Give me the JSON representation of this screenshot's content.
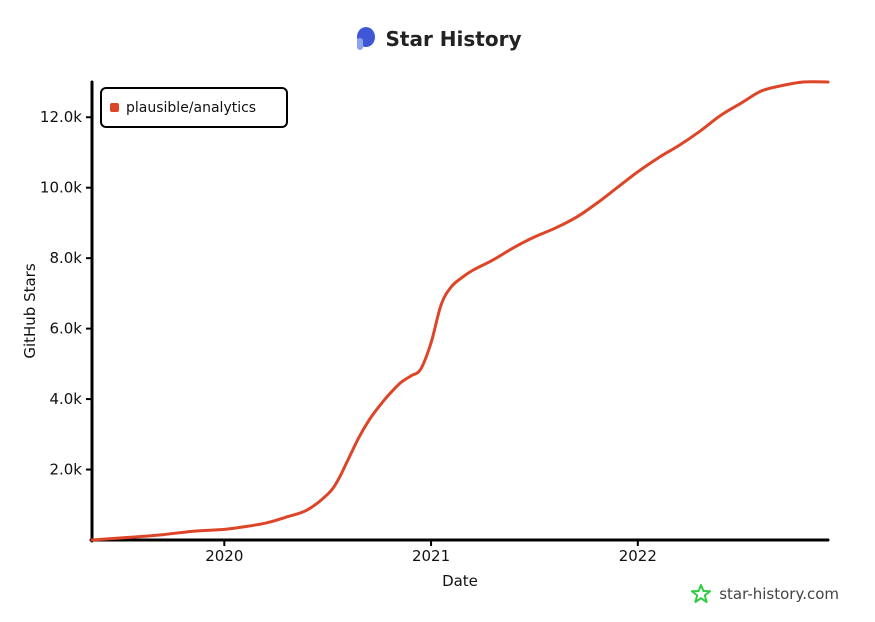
{
  "header": {
    "title": "Star History",
    "logo_icon": "star-history-logo-icon"
  },
  "footer": {
    "site": "star-history.com",
    "icon": "star-icon"
  },
  "colors": {
    "series": "#dd4528",
    "axis": "#000000",
    "logo": "#3f57d6",
    "footer_star": "#2ecc40"
  },
  "chart_data": {
    "type": "line",
    "title": "Star History",
    "xlabel": "Date",
    "ylabel": "GitHub Stars",
    "ylim": [
      0,
      13000
    ],
    "y_ticks": [
      2000,
      4000,
      6000,
      8000,
      10000,
      12000
    ],
    "y_tick_labels": [
      "2.0k",
      "4.0k",
      "6.0k",
      "8.0k",
      "10.0k",
      "12.0k"
    ],
    "x_ticks": [
      2020,
      2021,
      2022
    ],
    "x_tick_labels": [
      "2020",
      "2021",
      "2022"
    ],
    "xlim": [
      2019.36,
      2022.92
    ],
    "grid": false,
    "legend": {
      "placement": "top-left",
      "entries": [
        "plausible/analytics"
      ]
    },
    "series": [
      {
        "name": "plausible/analytics",
        "x": [
          2019.36,
          2019.55,
          2019.7,
          2019.85,
          2020.0,
          2020.1,
          2020.2,
          2020.3,
          2020.4,
          2020.5,
          2020.55,
          2020.6,
          2020.65,
          2020.7,
          2020.75,
          2020.8,
          2020.85,
          2020.9,
          2020.95,
          2021.0,
          2021.05,
          2021.1,
          2021.15,
          2021.2,
          2021.3,
          2021.4,
          2021.5,
          2021.6,
          2021.7,
          2021.8,
          2021.9,
          2022.0,
          2022.1,
          2022.2,
          2022.3,
          2022.4,
          2022.5,
          2022.6,
          2022.7,
          2022.8,
          2022.92
        ],
        "y": [
          0,
          80,
          150,
          250,
          300,
          380,
          480,
          650,
          850,
          1300,
          1700,
          2300,
          2900,
          3400,
          3800,
          4150,
          4450,
          4650,
          4850,
          5600,
          6700,
          7200,
          7450,
          7650,
          7950,
          8300,
          8600,
          8850,
          9150,
          9550,
          10000,
          10450,
          10850,
          11200,
          11600,
          12050,
          12400,
          12750,
          12900,
          13000,
          13000
        ]
      }
    ]
  }
}
